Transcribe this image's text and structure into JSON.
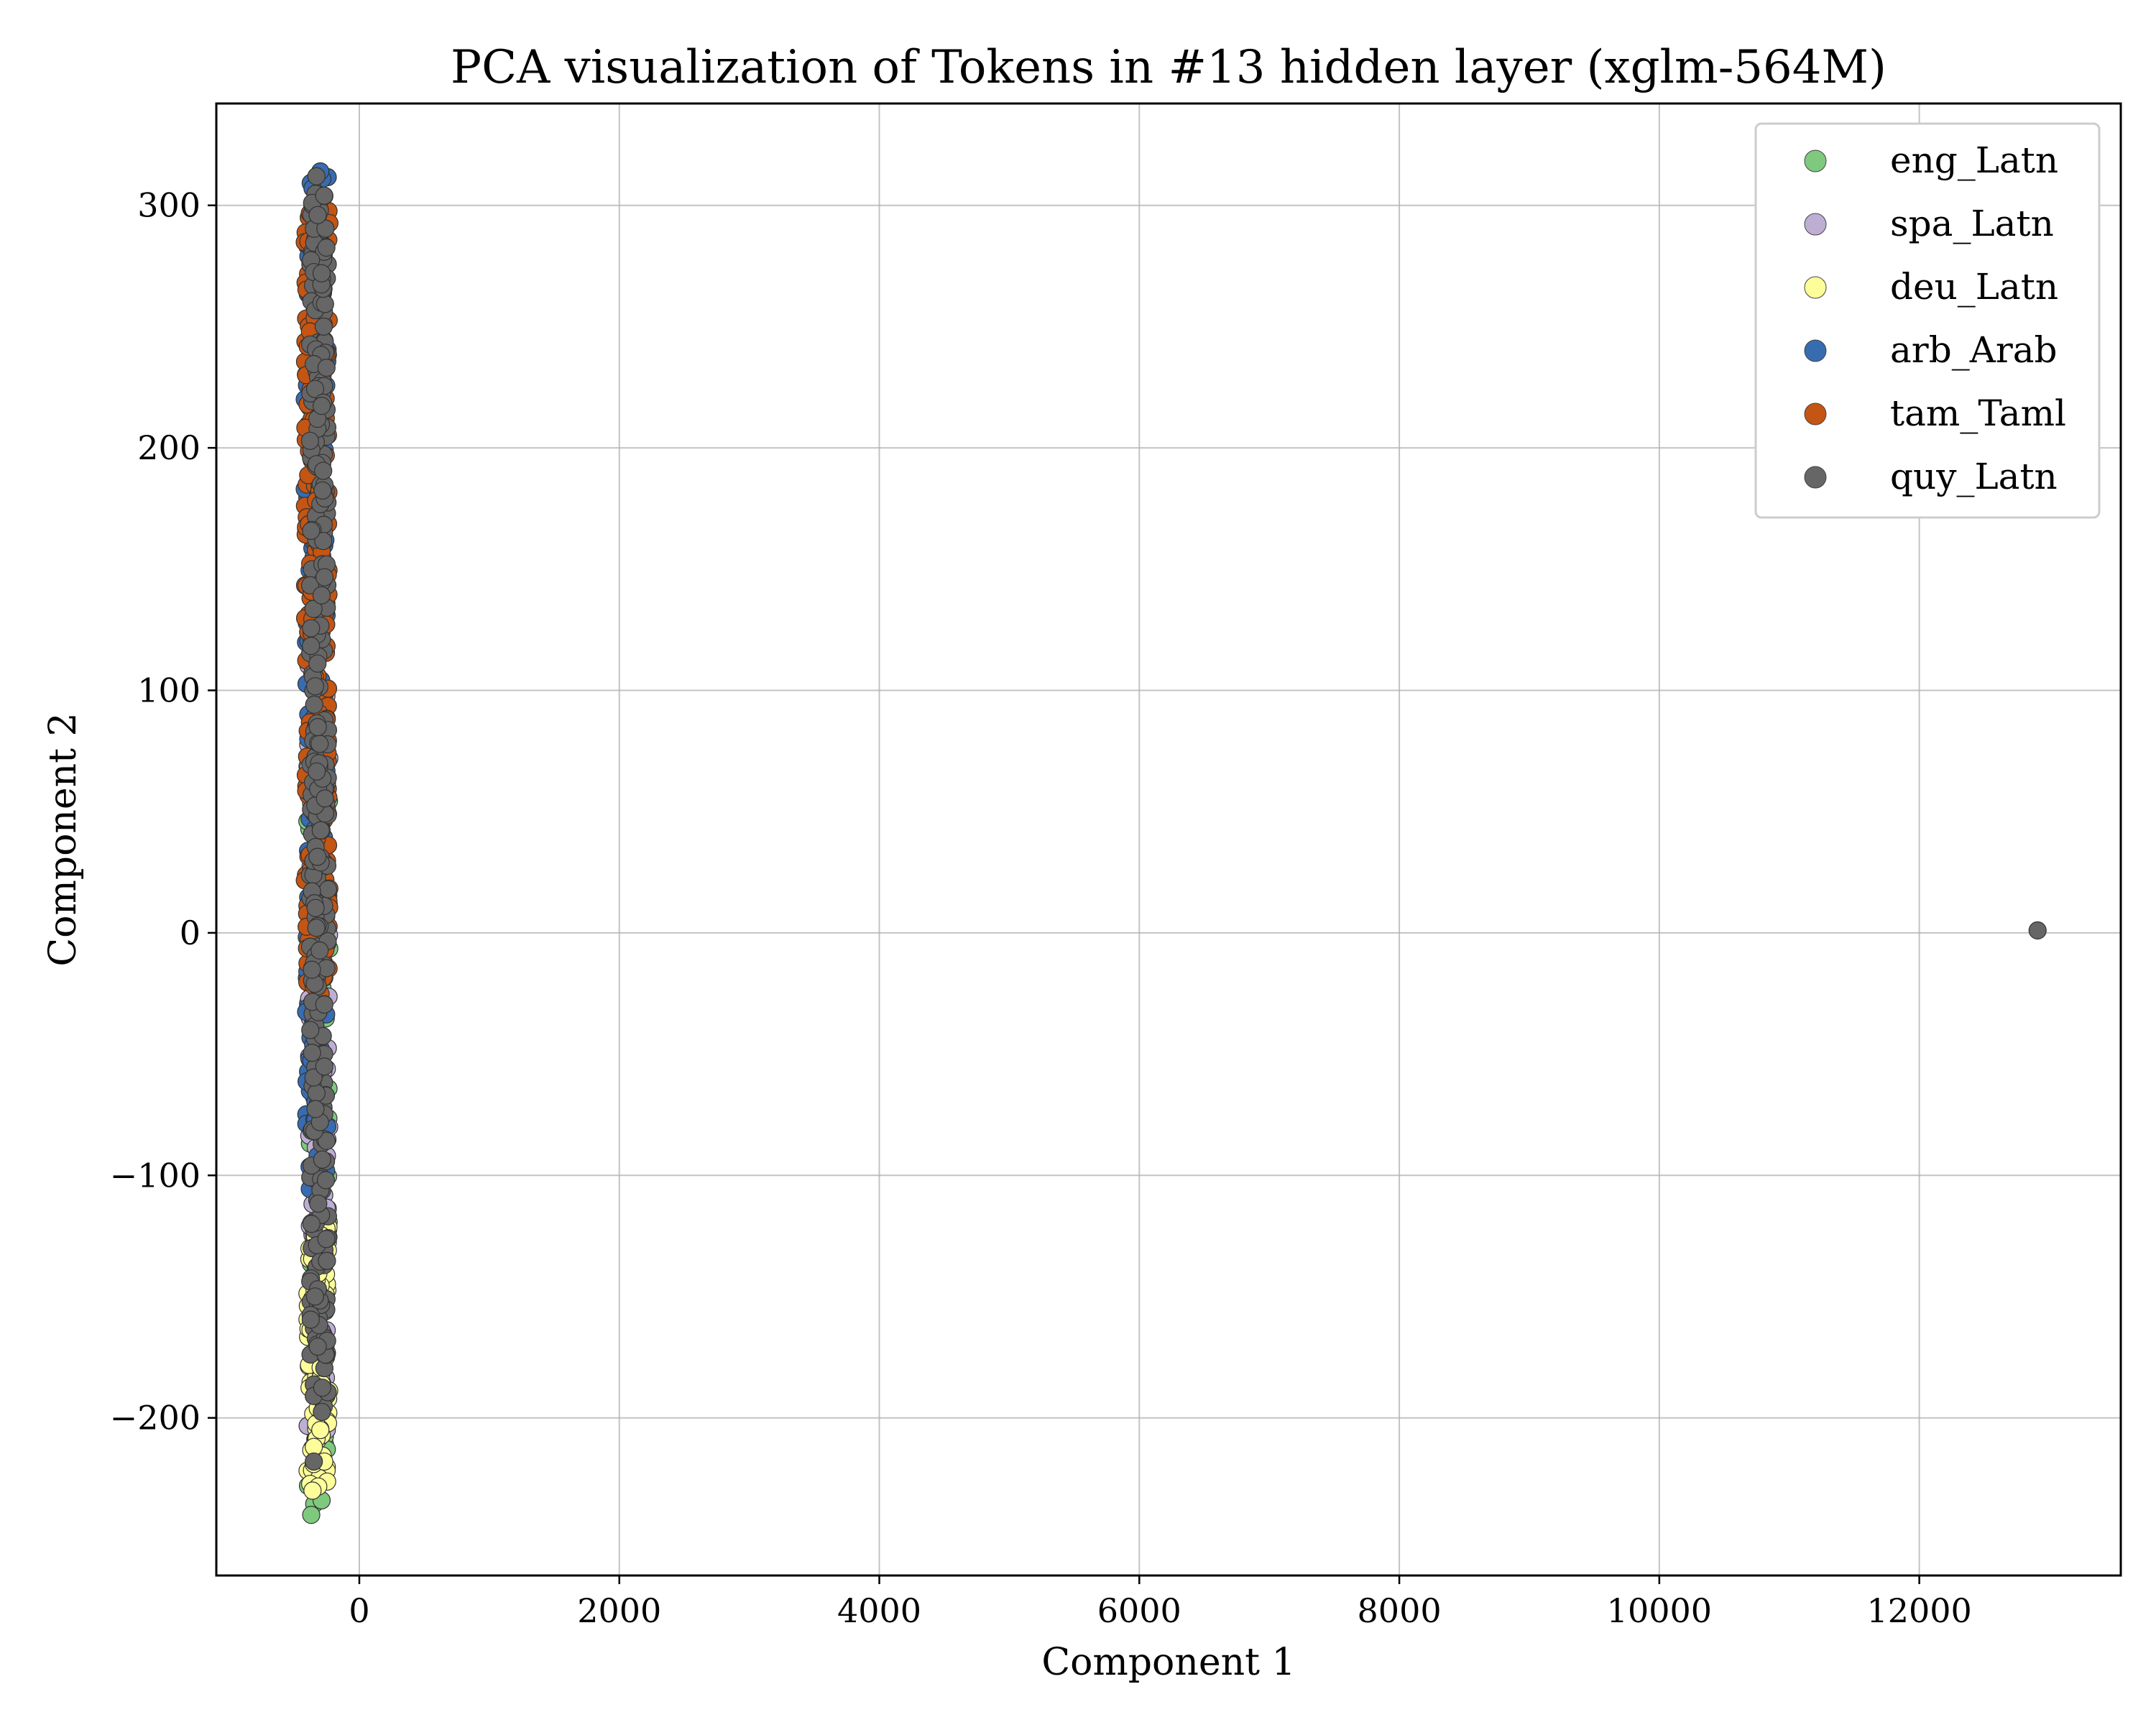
{
  "chart_data": {
    "type": "scatter",
    "title": "PCA visualization of Tokens in #13 hidden layer (xglm-564M)",
    "xlabel": "Component 1",
    "ylabel": "Component 2",
    "xlim": [
      -1100,
      13550
    ],
    "ylim": [
      -265,
      342
    ],
    "xticks": [
      0,
      2000,
      4000,
      6000,
      8000,
      10000,
      12000
    ],
    "xtick_labels": [
      "0",
      "2000",
      "4000",
      "6000",
      "8000",
      "10000",
      "12000"
    ],
    "yticks": [
      -200,
      -100,
      0,
      100,
      200,
      300
    ],
    "ytick_labels": [
      "−200",
      "−100",
      "0",
      "100",
      "200",
      "300"
    ],
    "grid": true,
    "legend_position": "top-right",
    "series": [
      {
        "name": "eng_Latn",
        "color": "#7fc97f",
        "cluster": {
          "x_range": [
            -400,
            -230
          ],
          "y_range": [
            -240,
            70
          ],
          "count": 70
        },
        "points": [
          [
            -370,
            -240
          ],
          [
            -290,
            -234
          ],
          [
            -395,
            -228
          ],
          [
            -330,
            -60
          ],
          [
            -300,
            65
          ]
        ]
      },
      {
        "name": "spa_Latn",
        "color": "#beaed4",
        "cluster": {
          "x_range": [
            -400,
            -230
          ],
          "y_range": [
            -225,
            120
          ],
          "count": 70
        },
        "points": [
          [
            -250,
            -205
          ],
          [
            -300,
            -190
          ]
        ]
      },
      {
        "name": "deu_Latn",
        "color": "#fdfd99",
        "cluster": {
          "x_range": [
            -400,
            -230
          ],
          "y_range": [
            -232,
            -120
          ],
          "count": 90
        },
        "points": [
          [
            -360,
            -230
          ],
          [
            -350,
            -212
          ],
          [
            -300,
            -205
          ],
          [
            -270,
            -218
          ],
          [
            -320,
            -196
          ]
        ]
      },
      {
        "name": "arb_Arab",
        "color": "#386cb0",
        "cluster": {
          "x_range": [
            -410,
            -240
          ],
          "y_range": [
            -110,
            312
          ],
          "count": 170
        },
        "points": [
          [
            -300,
            314
          ],
          [
            -360,
            307
          ],
          [
            -420,
            220
          ],
          [
            -420,
            183
          ],
          [
            -300,
            255
          ]
        ]
      },
      {
        "name": "tam_Taml",
        "color": "#c45513",
        "cluster": {
          "x_range": [
            -420,
            -230
          ],
          "y_range": [
            -30,
            298
          ],
          "count": 260
        },
        "points": [
          [
            -370,
            296
          ],
          [
            -340,
            286
          ],
          [
            -330,
            276
          ],
          [
            -380,
            248
          ],
          [
            -410,
            230
          ]
        ]
      },
      {
        "name": "quy_Latn",
        "color": "#666666",
        "cluster": {
          "x_range": [
            -380,
            -240
          ],
          "y_range": [
            -200,
            305
          ],
          "count": 320
        },
        "points": [
          [
            -330,
            312
          ],
          [
            -270,
            304
          ],
          [
            -320,
            296
          ],
          [
            -290,
            272
          ],
          [
            -350,
            -218
          ],
          [
            12910,
            1
          ]
        ]
      }
    ]
  }
}
